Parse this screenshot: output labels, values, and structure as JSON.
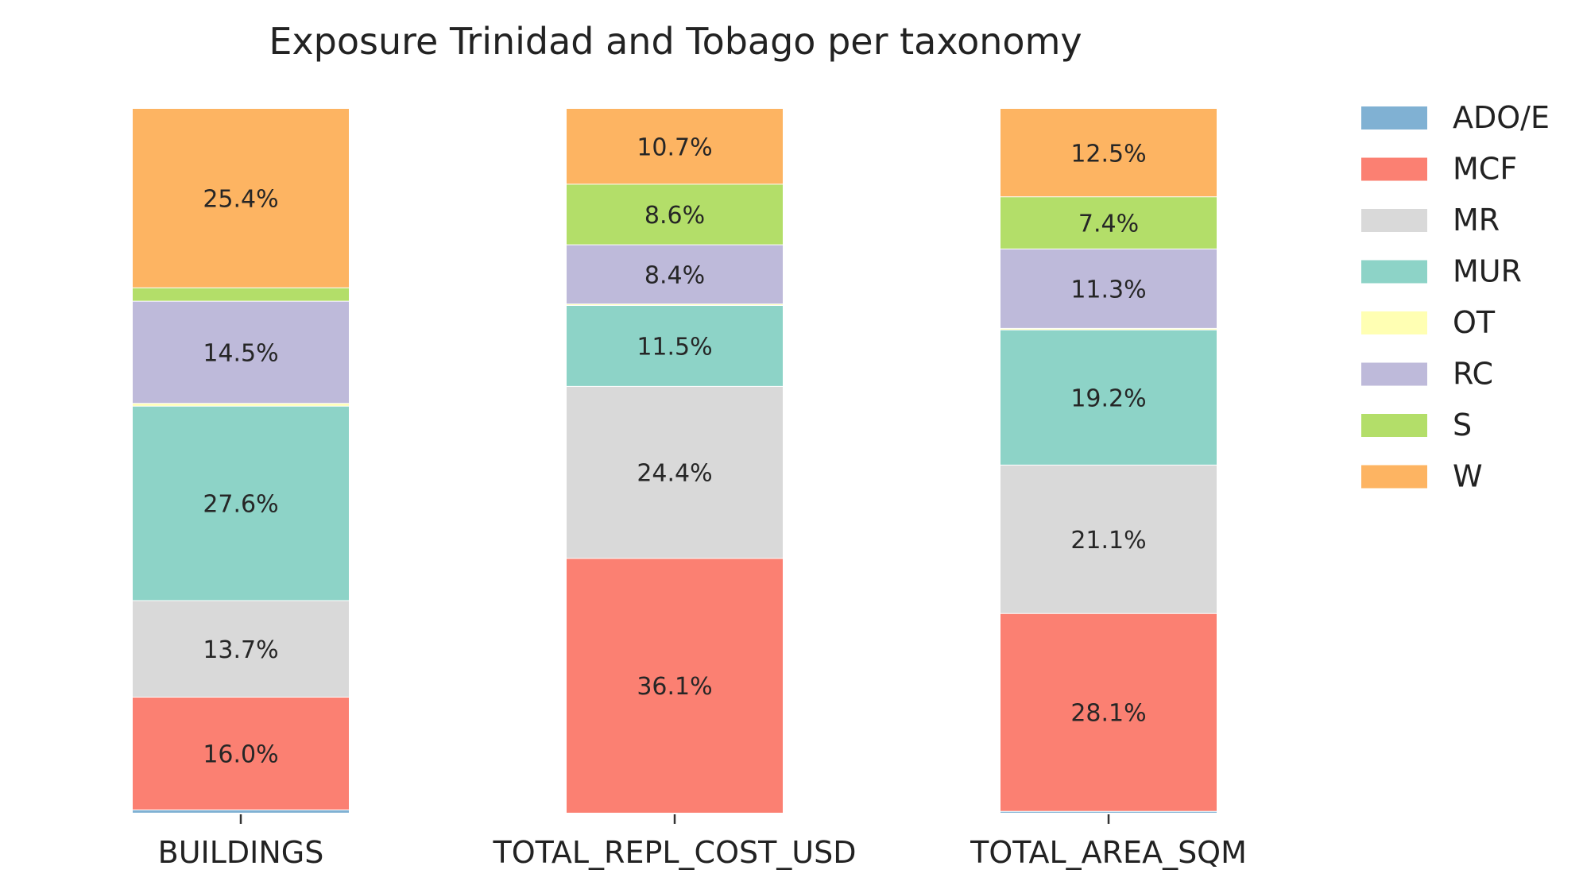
{
  "chart_data": {
    "type": "bar",
    "stacked": true,
    "normalized": true,
    "title": "Exposure Trinidad and Tobago per taxonomy",
    "categories": [
      "BUILDINGS",
      "TOTAL_REPL_COST_USD",
      "TOTAL_AREA_SQM"
    ],
    "series": [
      {
        "name": "ADO/E",
        "color": "#80b1d3",
        "values": [
          0.4,
          0.0,
          0.2
        ]
      },
      {
        "name": "MCF",
        "color": "#fb8072",
        "values": [
          16.0,
          36.1,
          28.1
        ]
      },
      {
        "name": "MR",
        "color": "#d9d9d9",
        "values": [
          13.7,
          24.4,
          21.1
        ]
      },
      {
        "name": "MUR",
        "color": "#8dd3c7",
        "values": [
          27.6,
          11.5,
          19.2
        ]
      },
      {
        "name": "OT",
        "color": "#ffffb3",
        "values": [
          0.4,
          0.2,
          0.2
        ]
      },
      {
        "name": "RC",
        "color": "#bebada",
        "values": [
          14.5,
          8.4,
          11.3
        ]
      },
      {
        "name": "S",
        "color": "#b3de69",
        "values": [
          1.9,
          8.6,
          7.4
        ]
      },
      {
        "name": "W",
        "color": "#fdb462",
        "values": [
          25.4,
          10.7,
          12.5
        ]
      }
    ],
    "data_labels": [
      [
        "",
        "16.0%",
        "13.7%",
        "27.6%",
        "",
        "14.5%",
        "",
        "25.4%"
      ],
      [
        "",
        "36.1%",
        "24.4%",
        "11.5%",
        "",
        "8.4%",
        "8.6%",
        "10.7%"
      ],
      [
        "",
        "28.1%",
        "21.1%",
        "19.2%",
        "",
        "11.3%",
        "7.4%",
        "12.5%"
      ]
    ],
    "ylim": [
      0,
      100
    ],
    "xlabel": "",
    "ylabel": "",
    "grid": false,
    "legend": "right"
  }
}
